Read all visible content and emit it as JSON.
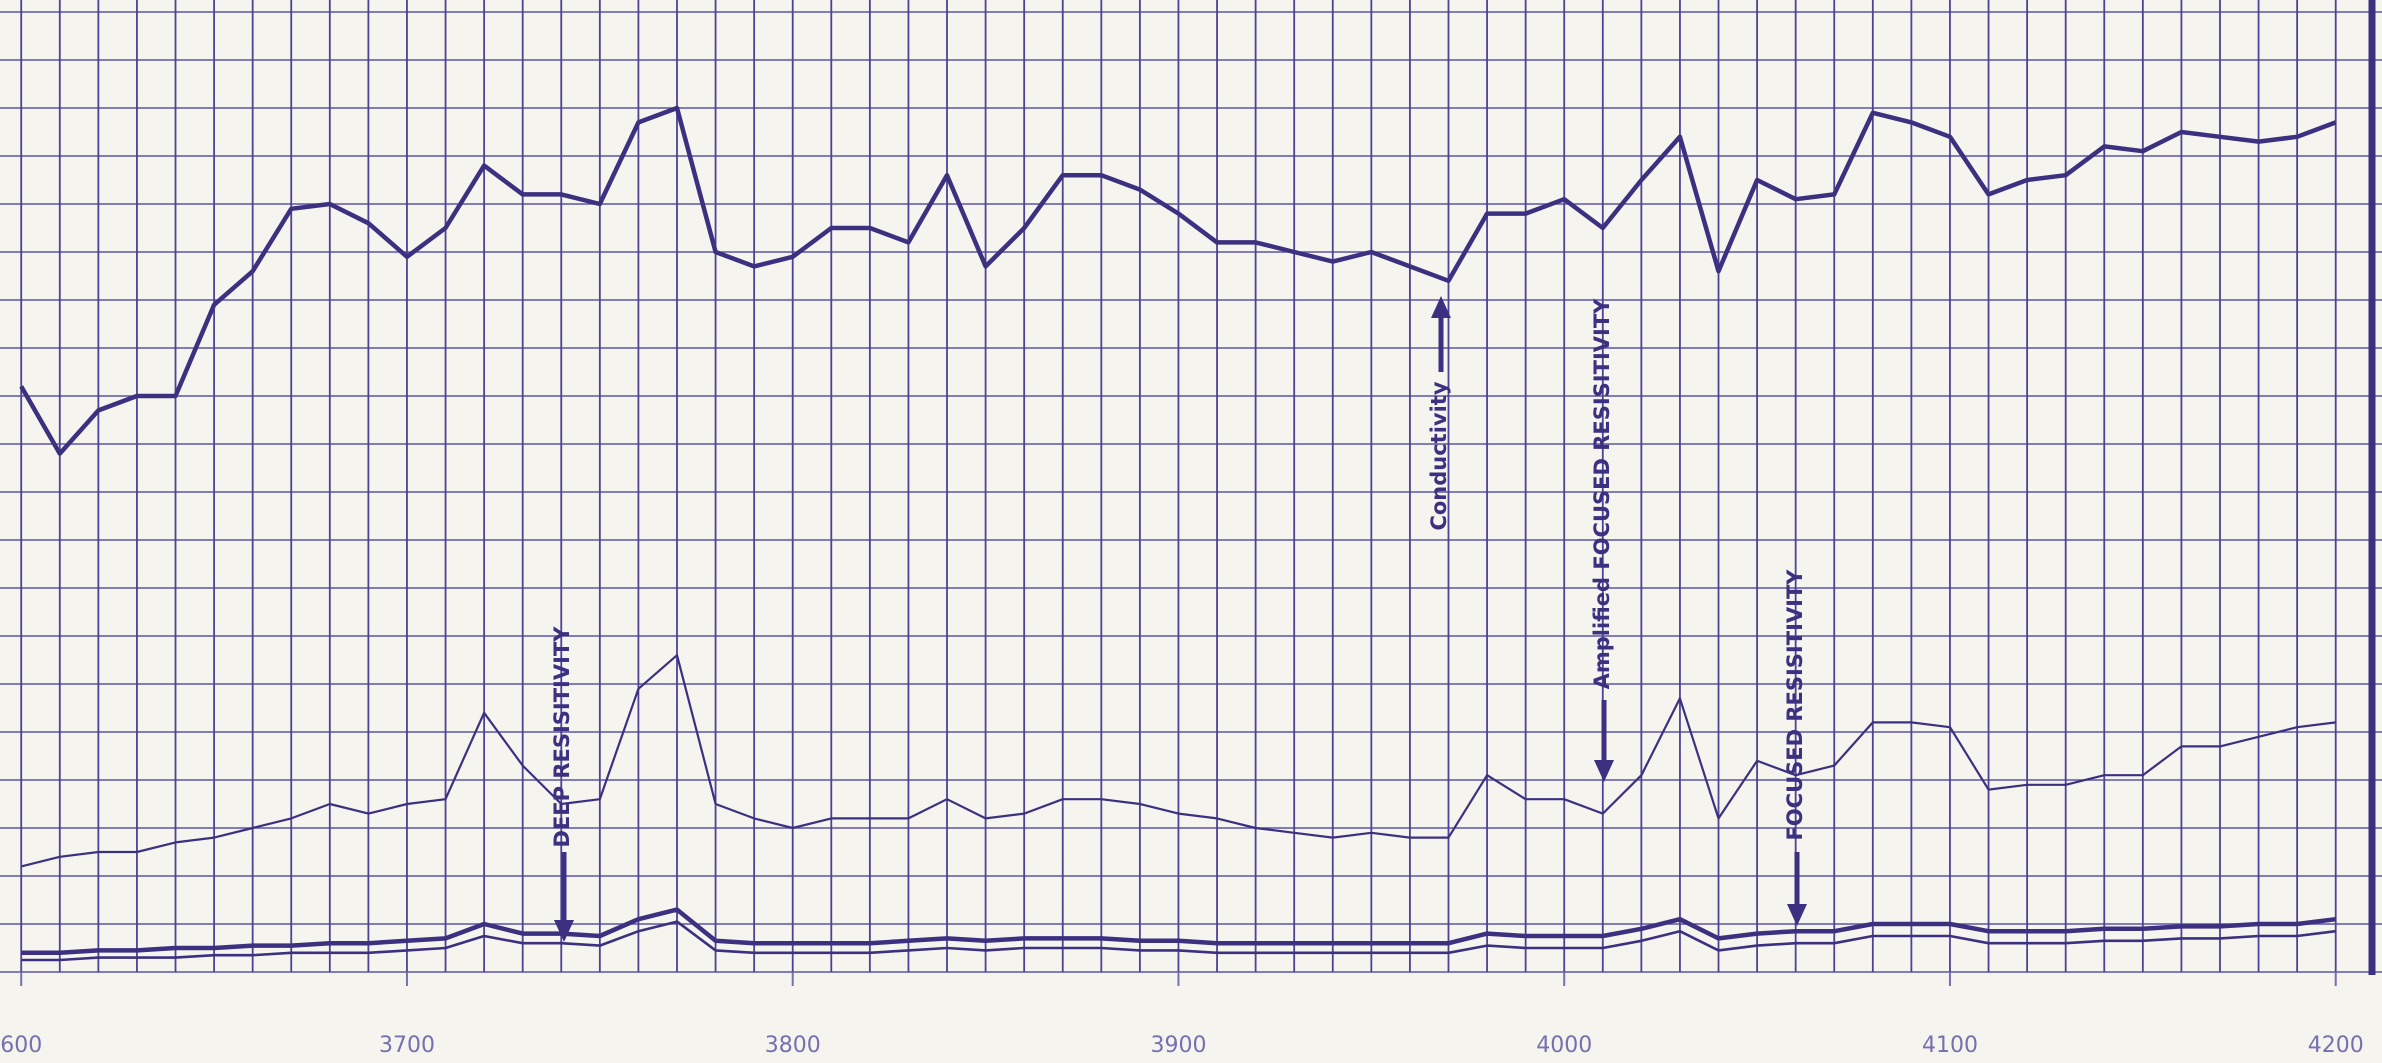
{
  "chart_data": {
    "type": "line",
    "x": [
      3600,
      3610,
      3620,
      3630,
      3640,
      3650,
      3660,
      3670,
      3680,
      3690,
      3700,
      3710,
      3720,
      3730,
      3740,
      3750,
      3760,
      3770,
      3780,
      3790,
      3800,
      3810,
      3820,
      3830,
      3840,
      3850,
      3860,
      3870,
      3880,
      3890,
      3900,
      3910,
      3920,
      3930,
      3940,
      3950,
      3960,
      3970,
      3980,
      3990,
      4000,
      4010,
      4020,
      4030,
      4040,
      4050,
      4060,
      4070,
      4080,
      4090,
      4100,
      4110,
      4120,
      4130,
      4140,
      4150,
      4160,
      4170,
      4180,
      4190,
      4200
    ],
    "xlim": [
      3594.5,
      4212
    ],
    "xticks": [
      {
        "value": 3600,
        "label": "600"
      },
      3700,
      3800,
      3900,
      4000,
      4100,
      4200
    ],
    "xminorticks": [
      3600,
      3610,
      3620,
      3630,
      3640,
      3650,
      3660,
      3670,
      3680,
      3690,
      3700,
      3710,
      3720,
      3730,
      3740,
      3750,
      3760,
      3770,
      3780,
      3790,
      3800,
      3810,
      3820,
      3830,
      3840,
      3850,
      3860,
      3870,
      3880,
      3890,
      3900,
      3910,
      3920,
      3930,
      3940,
      3950,
      3960,
      3970,
      3980,
      3990,
      4000,
      4010,
      4020,
      4030,
      4040,
      4050,
      4060,
      4070,
      4080,
      4090,
      4100,
      4110,
      4120,
      4130,
      4140,
      4150,
      4160,
      4170,
      4180,
      4190,
      4200,
      4210
    ],
    "ylim": [
      0,
      20
    ],
    "yticks": [
      0,
      1,
      2,
      3,
      4,
      5,
      6,
      7,
      8,
      9,
      10,
      11,
      12,
      13,
      14,
      15,
      16,
      17,
      18,
      19,
      20
    ],
    "grid": true,
    "series": [
      {
        "name": "Conductivity",
        "color": "#3b3180",
        "values": [
          12.2,
          10.8,
          11.7,
          12.0,
          12.0,
          13.9,
          14.6,
          15.9,
          16.0,
          15.6,
          14.9,
          15.5,
          16.8,
          16.2,
          16.2,
          16.0,
          17.7,
          18.0,
          15.0,
          14.7,
          14.9,
          15.5,
          15.5,
          15.2,
          16.6,
          14.7,
          15.5,
          16.6,
          16.6,
          16.3,
          15.8,
          15.2,
          15.2,
          15.0,
          14.8,
          15.0,
          14.7,
          14.4,
          15.8,
          15.8,
          16.1,
          15.5,
          16.5,
          17.4,
          14.6,
          16.5,
          16.1,
          16.2,
          17.9,
          17.7,
          17.4,
          16.2,
          16.5,
          16.6,
          17.2,
          17.1,
          17.5,
          17.4,
          17.3,
          17.4,
          17.7
        ]
      },
      {
        "name": "Amplified FOCUSED RESISITIVITY",
        "color": "#3b3180",
        "values": [
          2.2,
          2.4,
          2.5,
          2.5,
          2.7,
          2.8,
          3.0,
          3.2,
          3.5,
          3.3,
          3.5,
          3.6,
          5.4,
          4.3,
          3.5,
          3.6,
          5.9,
          6.6,
          3.5,
          3.2,
          3.0,
          3.2,
          3.2,
          3.2,
          3.6,
          3.2,
          3.3,
          3.6,
          3.6,
          3.5,
          3.3,
          3.2,
          3.0,
          2.9,
          2.8,
          2.9,
          2.8,
          2.8,
          4.1,
          3.6,
          3.6,
          3.3,
          4.1,
          5.7,
          3.2,
          4.4,
          4.1,
          4.3,
          5.2,
          5.2,
          5.1,
          3.8,
          3.9,
          3.9,
          4.1,
          4.1,
          4.7,
          4.7,
          4.9,
          5.1,
          5.2
        ]
      },
      {
        "name": "FOCUSED RESISITIVITY",
        "color": "#3b3180",
        "values": [
          0.4,
          0.4,
          0.45,
          0.45,
          0.5,
          0.5,
          0.55,
          0.55,
          0.6,
          0.6,
          0.65,
          0.7,
          1.0,
          0.8,
          0.8,
          0.75,
          1.1,
          1.3,
          0.65,
          0.6,
          0.6,
          0.6,
          0.6,
          0.65,
          0.7,
          0.65,
          0.7,
          0.7,
          0.7,
          0.65,
          0.65,
          0.6,
          0.6,
          0.6,
          0.6,
          0.6,
          0.6,
          0.6,
          0.8,
          0.75,
          0.75,
          0.75,
          0.9,
          1.1,
          0.7,
          0.8,
          0.85,
          0.85,
          1.0,
          1.0,
          1.0,
          0.85,
          0.85,
          0.85,
          0.9,
          0.9,
          0.95,
          0.95,
          1.0,
          1.0,
          1.1
        ]
      },
      {
        "name": "DEEP RESISITIVITY",
        "color": "#3b3180",
        "values": [
          0.25,
          0.25,
          0.3,
          0.3,
          0.3,
          0.35,
          0.35,
          0.4,
          0.4,
          0.4,
          0.45,
          0.5,
          0.75,
          0.6,
          0.6,
          0.55,
          0.85,
          1.05,
          0.45,
          0.4,
          0.4,
          0.4,
          0.4,
          0.45,
          0.5,
          0.45,
          0.5,
          0.5,
          0.5,
          0.45,
          0.45,
          0.4,
          0.4,
          0.4,
          0.4,
          0.4,
          0.4,
          0.4,
          0.55,
          0.5,
          0.5,
          0.5,
          0.65,
          0.85,
          0.45,
          0.55,
          0.6,
          0.6,
          0.75,
          0.75,
          0.75,
          0.6,
          0.6,
          0.6,
          0.65,
          0.65,
          0.7,
          0.7,
          0.75,
          0.75,
          0.85
        ]
      }
    ]
  }
}
